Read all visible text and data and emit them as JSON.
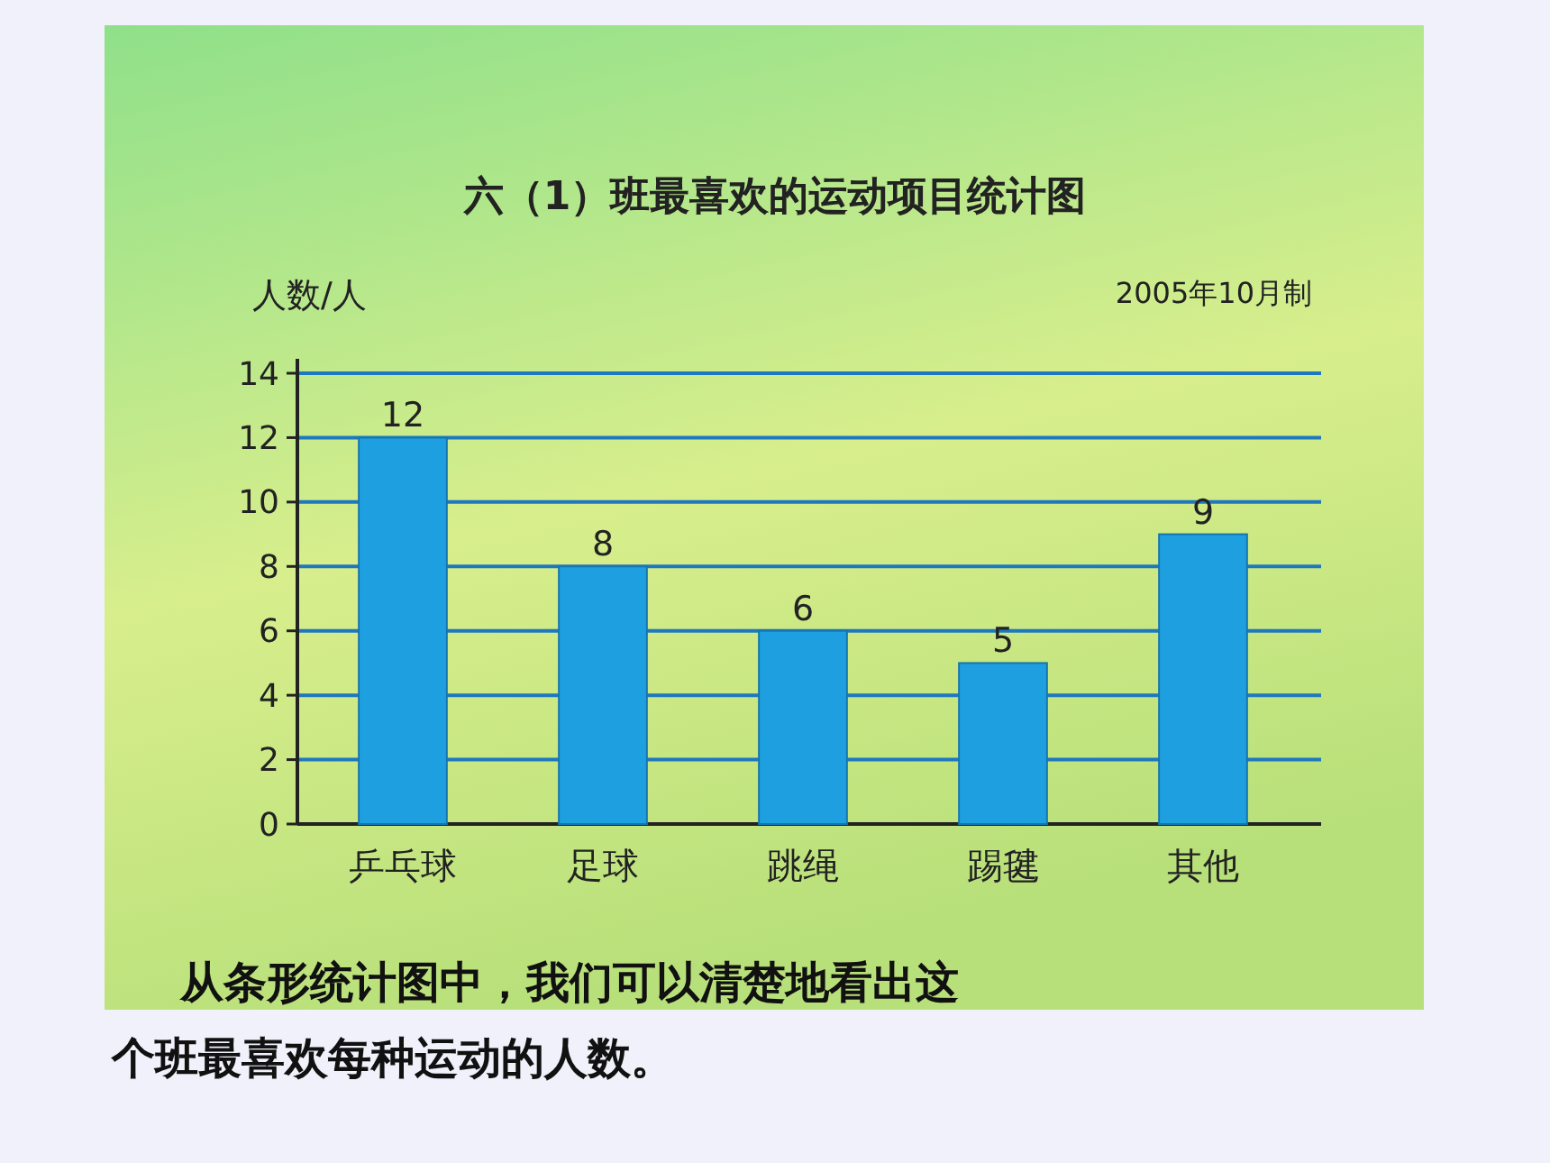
{
  "chart_data": {
    "type": "bar",
    "title": "六（1）班最喜欢的运动项目统计图",
    "ylabel": "人数/人",
    "annotations": [
      "2005年10月制",
      "从条形统计图中，我们可以清楚地看出这个班最喜欢每种运动的人数。"
    ],
    "categories": [
      "乒乓球",
      "足球",
      "跳绳",
      "踢毽",
      "其他"
    ],
    "values": [
      12,
      8,
      6,
      5,
      9
    ],
    "color": "#1ea0e0",
    "data_labels": true,
    "ylim": [
      0,
      14
    ],
    "yticks": [
      0,
      2,
      4,
      6,
      8,
      10,
      12,
      14
    ],
    "grid": "y"
  }
}
